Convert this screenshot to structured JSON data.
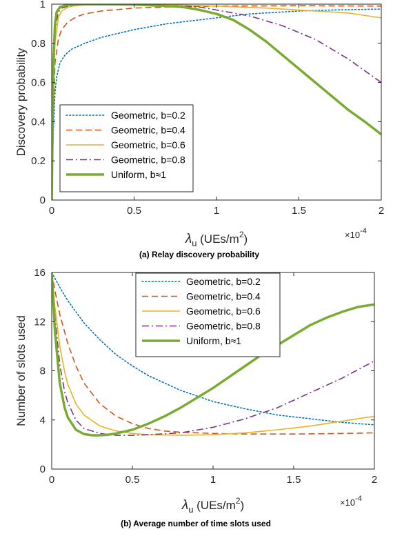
{
  "chart_data": [
    {
      "type": "line",
      "caption": "(a) Relay discovery probability",
      "ylabel": "Discovery probability",
      "xlabel": {
        "symbol": "λ",
        "sub": "u",
        "units": "(UEs/m",
        "sup": "2",
        "close": ")"
      },
      "x_multiplier": {
        "base": "×10",
        "exp": "-4"
      },
      "xlim": [
        0,
        2
      ],
      "ylim": [
        0,
        1
      ],
      "x_ticks": [
        0,
        0.5,
        1,
        1.5,
        2
      ],
      "x_tick_labels": [
        "0",
        "0.5",
        "1",
        "1.5",
        "2"
      ],
      "y_ticks": [
        0,
        0.2,
        0.4,
        0.6,
        0.8,
        1
      ],
      "y_tick_labels": [
        "0",
        "0.2",
        "0.4",
        "0.6",
        "0.8",
        "1"
      ],
      "legend_position": "bottom-left",
      "series": [
        {
          "name": "Geometric, b=0.2",
          "color": "#0072BD",
          "style": "dotted",
          "width": 1.6,
          "x": [
            0,
            0.01,
            0.02,
            0.03,
            0.05,
            0.08,
            0.12,
            0.2,
            0.3,
            0.5,
            0.7,
            1.0,
            1.2,
            1.5,
            1.7,
            2.0
          ],
          "y": [
            0,
            0.35,
            0.55,
            0.63,
            0.7,
            0.74,
            0.77,
            0.8,
            0.83,
            0.87,
            0.9,
            0.93,
            0.95,
            0.965,
            0.97,
            0.975
          ]
        },
        {
          "name": "Geometric, b=0.4",
          "color": "#D95319",
          "style": "dashed",
          "width": 1.6,
          "x": [
            0,
            0.01,
            0.02,
            0.04,
            0.06,
            0.1,
            0.15,
            0.2,
            0.3,
            0.5,
            0.7,
            1.0,
            1.5,
            2.0
          ],
          "y": [
            0,
            0.45,
            0.7,
            0.82,
            0.87,
            0.91,
            0.935,
            0.95,
            0.965,
            0.98,
            0.985,
            0.99,
            0.992,
            0.99
          ]
        },
        {
          "name": "Geometric, b=0.6",
          "color": "#EDB120",
          "style": "solid",
          "width": 1.6,
          "x": [
            0,
            0.01,
            0.02,
            0.04,
            0.06,
            0.1,
            0.15,
            0.2,
            0.3,
            0.5,
            0.8,
            1.0,
            1.3,
            1.5,
            1.8,
            2.0
          ],
          "y": [
            0,
            0.55,
            0.8,
            0.93,
            0.965,
            0.985,
            0.993,
            0.996,
            0.997,
            0.997,
            0.995,
            0.99,
            0.98,
            0.97,
            0.955,
            0.93
          ]
        },
        {
          "name": "Geometric, b=0.8",
          "color": "#7E2F8E",
          "style": "dashdot",
          "width": 1.6,
          "x": [
            0,
            0.01,
            0.02,
            0.04,
            0.06,
            0.1,
            0.15,
            0.2,
            0.4,
            0.6,
            0.8,
            0.9,
            1.0,
            1.2,
            1.4,
            1.6,
            1.8,
            2.0
          ],
          "y": [
            0,
            0.62,
            0.87,
            0.96,
            0.98,
            0.99,
            0.995,
            0.997,
            0.997,
            0.995,
            0.99,
            0.985,
            0.97,
            0.94,
            0.89,
            0.82,
            0.72,
            0.6
          ]
        },
        {
          "name": "Uniform, b≈1",
          "color": "#77AC30",
          "style": "solid",
          "width": 3.5,
          "x": [
            0,
            0.01,
            0.02,
            0.03,
            0.05,
            0.08,
            0.1,
            0.15,
            0.2,
            0.3,
            0.5,
            0.7,
            0.8,
            0.9,
            1.0,
            1.1,
            1.2,
            1.3,
            1.4,
            1.5,
            1.6,
            1.7,
            1.8,
            1.9,
            2.0
          ],
          "y": [
            0,
            0.7,
            0.9,
            0.96,
            0.985,
            0.993,
            0.996,
            0.998,
            0.999,
            0.999,
            0.998,
            0.99,
            0.985,
            0.97,
            0.95,
            0.92,
            0.87,
            0.81,
            0.74,
            0.67,
            0.6,
            0.53,
            0.46,
            0.4,
            0.335
          ]
        }
      ]
    },
    {
      "type": "line",
      "caption": "(b) Average number of time slots used",
      "ylabel": "Number of slots used",
      "xlabel": {
        "symbol": "λ",
        "sub": "u",
        "units": "(UEs/m",
        "sup": "2",
        "close": ")"
      },
      "x_multiplier": {
        "base": "×10",
        "exp": "-4"
      },
      "xlim": [
        0,
        2
      ],
      "ylim": [
        0,
        16
      ],
      "x_ticks": [
        0,
        0.5,
        1,
        1.5,
        2
      ],
      "x_tick_labels": [
        "0",
        "0.5",
        "1",
        "1.5",
        "2"
      ],
      "y_ticks": [
        0,
        4,
        8,
        12,
        16
      ],
      "y_tick_labels": [
        "0",
        "4",
        "8",
        "12",
        "16"
      ],
      "legend_position": "top-center",
      "series": [
        {
          "name": "Geometric, b=0.2",
          "color": "#0072BD",
          "style": "dotted",
          "width": 1.6,
          "x": [
            0,
            0.05,
            0.1,
            0.2,
            0.3,
            0.4,
            0.5,
            0.6,
            0.8,
            1.0,
            1.2,
            1.4,
            1.6,
            1.8,
            2.0
          ],
          "y": [
            16,
            14.8,
            13.7,
            11.9,
            10.5,
            9.3,
            8.4,
            7.6,
            6.4,
            5.5,
            4.9,
            4.4,
            4.1,
            3.8,
            3.6
          ]
        },
        {
          "name": "Geometric, b=0.4",
          "color": "#D95319",
          "style": "dashed",
          "width": 1.6,
          "x": [
            0,
            0.02,
            0.05,
            0.1,
            0.15,
            0.2,
            0.3,
            0.4,
            0.5,
            0.6,
            0.7,
            0.8,
            1.0,
            1.2,
            1.5,
            1.8,
            2.0
          ],
          "y": [
            16,
            14.5,
            12.6,
            10.2,
            8.4,
            7.0,
            5.3,
            4.3,
            3.7,
            3.3,
            3.1,
            3.0,
            2.9,
            2.85,
            2.85,
            2.9,
            2.95
          ]
        },
        {
          "name": "Geometric, b=0.6",
          "color": "#EDB120",
          "style": "solid",
          "width": 1.6,
          "x": [
            0,
            0.02,
            0.05,
            0.08,
            0.1,
            0.15,
            0.2,
            0.3,
            0.4,
            0.5,
            0.6,
            0.8,
            1.0,
            1.2,
            1.4,
            1.6,
            1.8,
            2.0
          ],
          "y": [
            16,
            13.2,
            10.0,
            7.9,
            6.9,
            5.3,
            4.4,
            3.5,
            3.1,
            2.9,
            2.8,
            2.75,
            2.8,
            2.95,
            3.2,
            3.5,
            3.9,
            4.3
          ]
        },
        {
          "name": "Geometric, b=0.8",
          "color": "#7E2F8E",
          "style": "dashdot",
          "width": 1.6,
          "x": [
            0,
            0.02,
            0.05,
            0.08,
            0.1,
            0.15,
            0.2,
            0.3,
            0.4,
            0.5,
            0.6,
            0.8,
            1.0,
            1.2,
            1.4,
            1.6,
            1.8,
            2.0
          ],
          "y": [
            16,
            12.4,
            8.5,
            6.3,
            5.4,
            4.0,
            3.3,
            2.9,
            2.75,
            2.75,
            2.8,
            2.95,
            3.4,
            4.1,
            5.0,
            6.2,
            7.4,
            8.8
          ]
        },
        {
          "name": "Uniform, b≈1",
          "color": "#77AC30",
          "style": "solid",
          "width": 3.5,
          "x": [
            0,
            0.02,
            0.05,
            0.08,
            0.1,
            0.15,
            0.2,
            0.25,
            0.3,
            0.35,
            0.4,
            0.5,
            0.6,
            0.7,
            0.8,
            0.9,
            1.0,
            1.1,
            1.2,
            1.3,
            1.4,
            1.5,
            1.6,
            1.7,
            1.8,
            1.9,
            2.0
          ],
          "y": [
            16,
            11.2,
            7.0,
            5.0,
            4.2,
            3.2,
            2.85,
            2.75,
            2.75,
            2.8,
            2.9,
            3.2,
            3.7,
            4.3,
            5.0,
            5.8,
            6.6,
            7.5,
            8.4,
            9.3,
            10.1,
            10.9,
            11.7,
            12.3,
            12.8,
            13.2,
            13.4
          ]
        }
      ]
    }
  ]
}
